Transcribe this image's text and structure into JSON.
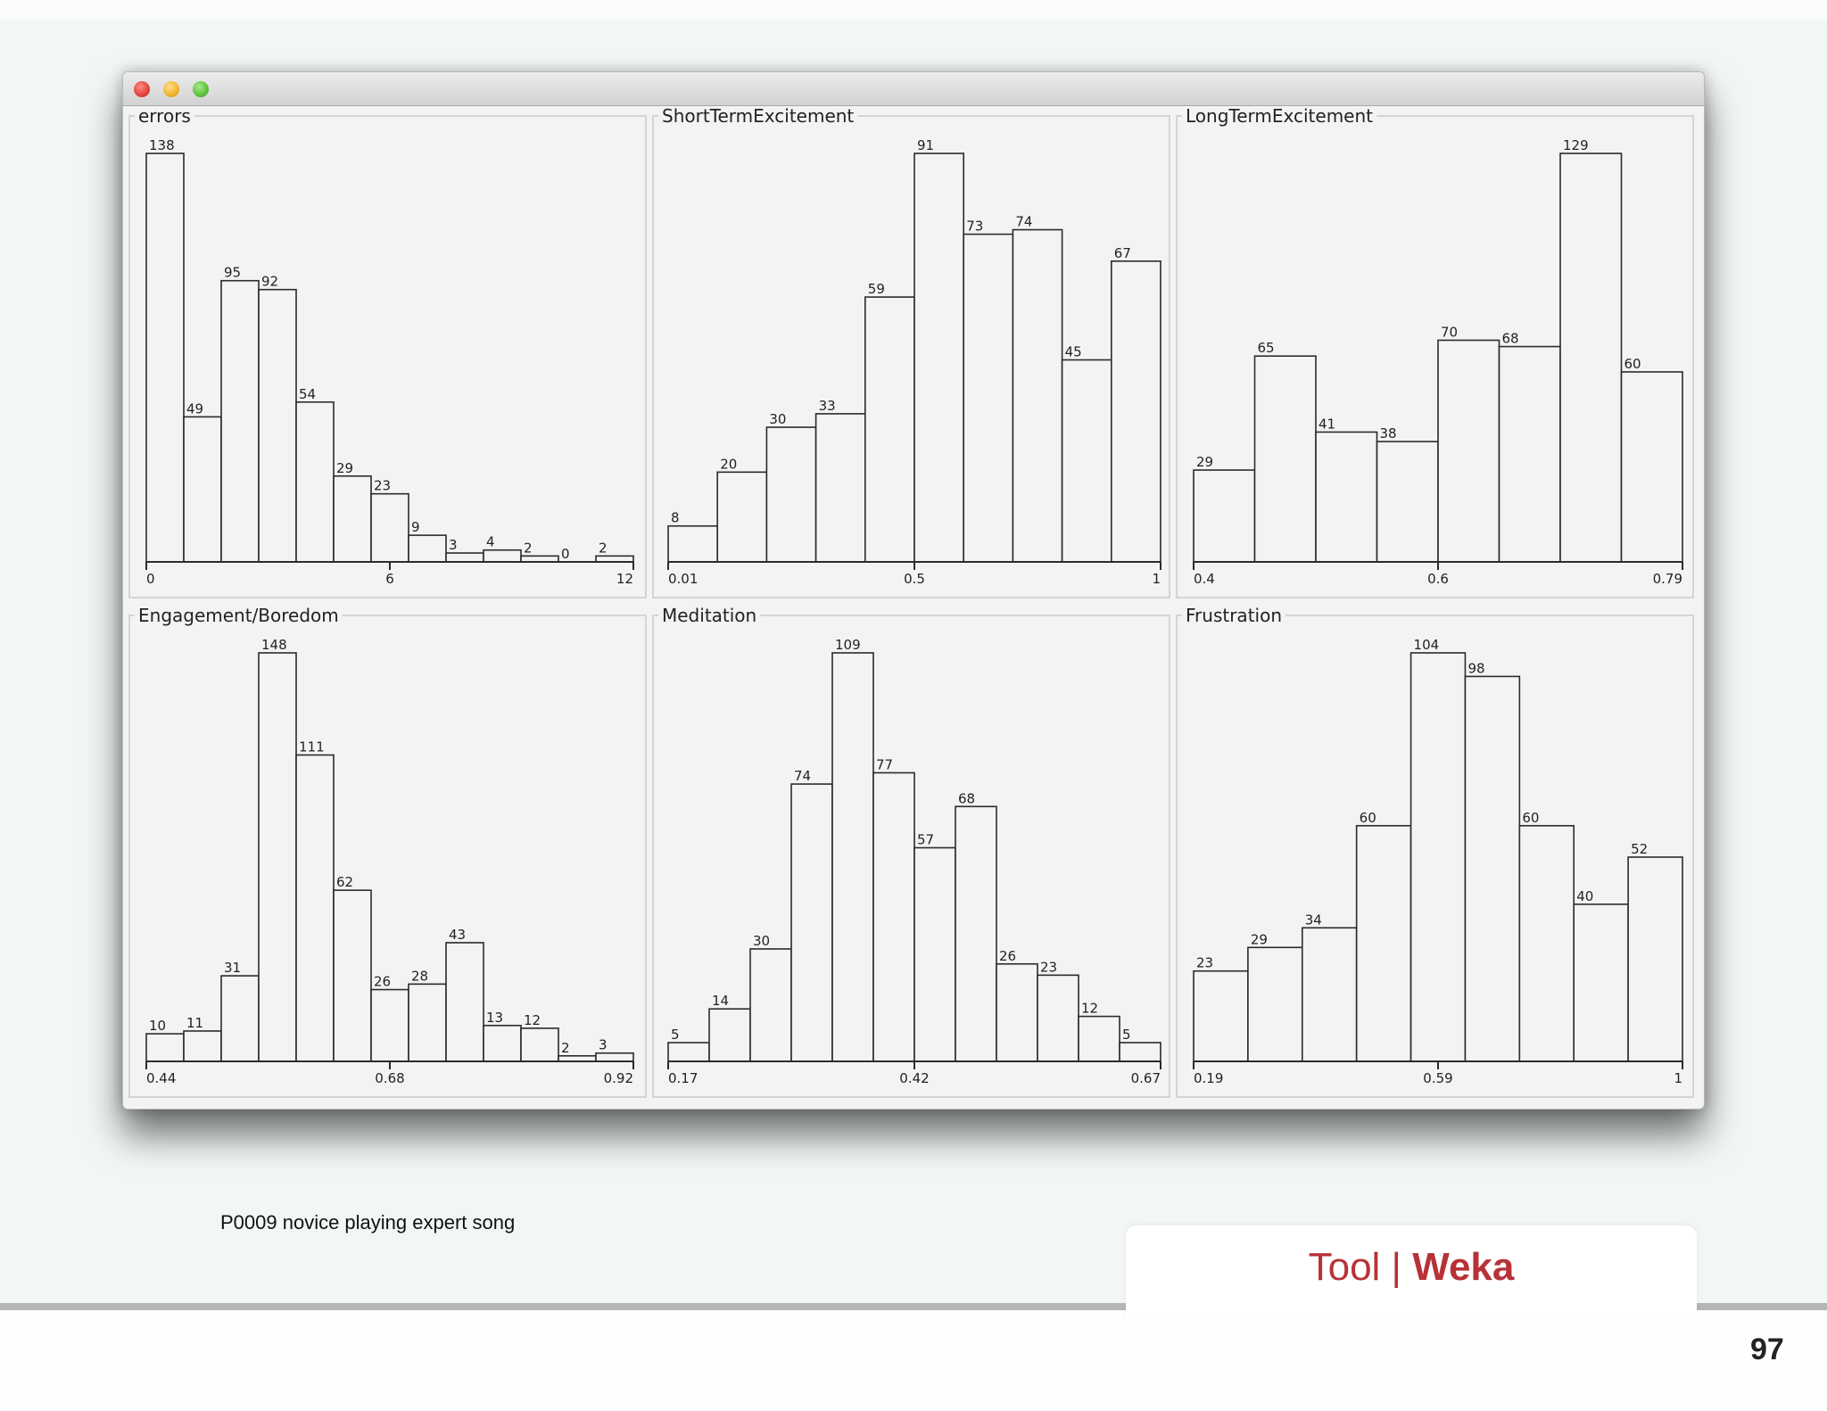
{
  "caption": "P0009 novice playing expert song",
  "footer": {
    "tool_label": "Tool |",
    "tool_name": "Weka",
    "page_number": "97"
  },
  "chart_data": [
    {
      "type": "bar",
      "title": "errors",
      "values": [
        138,
        49,
        95,
        92,
        54,
        29,
        23,
        9,
        3,
        4,
        2,
        0,
        2
      ],
      "xticks": [
        "0",
        "6",
        "12"
      ],
      "xlim": [
        0,
        12
      ]
    },
    {
      "type": "bar",
      "title": "ShortTermExcitement",
      "values": [
        8,
        20,
        30,
        33,
        59,
        91,
        73,
        74,
        45,
        67
      ],
      "xticks": [
        "0.01",
        "0.5",
        "1"
      ],
      "xlim": [
        0.01,
        1
      ]
    },
    {
      "type": "bar",
      "title": "LongTermExcitement",
      "values": [
        29,
        65,
        41,
        38,
        70,
        68,
        129,
        60
      ],
      "xticks": [
        "0.4",
        "0.6",
        "0.79"
      ],
      "xlim": [
        0.4,
        0.79
      ]
    },
    {
      "type": "bar",
      "title": "Engagement/Boredom",
      "values": [
        10,
        11,
        31,
        148,
        111,
        62,
        26,
        28,
        43,
        13,
        12,
        2,
        3
      ],
      "xticks": [
        "0.44",
        "0.68",
        "0.92"
      ],
      "xlim": [
        0.44,
        0.92
      ]
    },
    {
      "type": "bar",
      "title": "Meditation",
      "values": [
        5,
        14,
        30,
        74,
        109,
        77,
        57,
        68,
        26,
        23,
        12,
        5
      ],
      "xticks": [
        "0.17",
        "0.42",
        "0.67"
      ],
      "xlim": [
        0.17,
        0.67
      ]
    },
    {
      "type": "bar",
      "title": "Frustration",
      "values": [
        23,
        29,
        34,
        60,
        104,
        98,
        60,
        40,
        52
      ],
      "xticks": [
        "0.19",
        "0.59",
        "1"
      ],
      "xlim": [
        0.19,
        1
      ]
    }
  ]
}
